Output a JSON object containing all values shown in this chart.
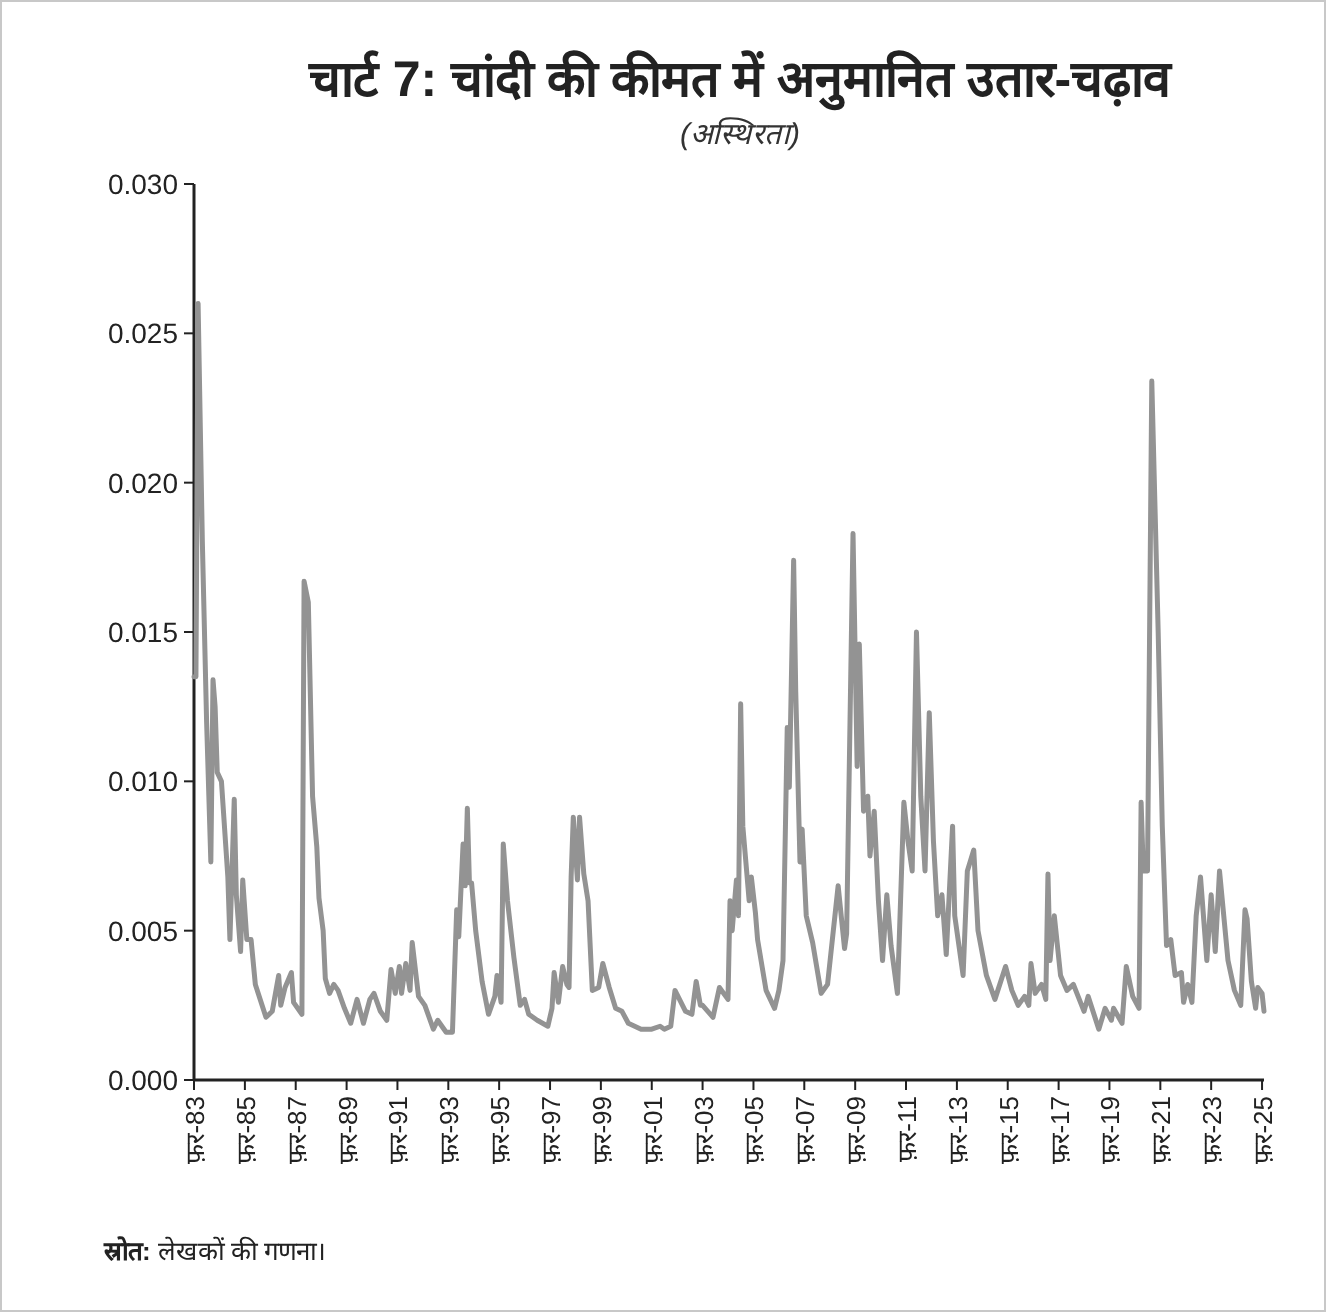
{
  "chart_data": {
    "type": "line",
    "title": "चार्ट 7: चांदी की कीमत में अनुमानित उतार-चढ़ाव",
    "subtitle": "(अस्थिरता)",
    "annotations": [
      "स्रोत: लेखकों की गणना।"
    ],
    "xlim": [
      "1983-02",
      "2025-03"
    ],
    "xticks": [
      {
        "value": "1983-02",
        "label": "फ़र-83"
      },
      {
        "value": "1985-02",
        "label": "फ़र-85"
      },
      {
        "value": "1987-02",
        "label": "फ़र-87"
      },
      {
        "value": "1989-02",
        "label": "फ़र-89"
      },
      {
        "value": "1991-02",
        "label": "फ़र-91"
      },
      {
        "value": "1993-02",
        "label": "फ़र-93"
      },
      {
        "value": "1995-02",
        "label": "फ़र-95"
      },
      {
        "value": "1997-02",
        "label": "फ़र-97"
      },
      {
        "value": "1999-02",
        "label": "फ़र-99"
      },
      {
        "value": "2001-02",
        "label": "फ़र-01"
      },
      {
        "value": "2003-02",
        "label": "फ़र-03"
      },
      {
        "value": "2005-02",
        "label": "फ़र-05"
      },
      {
        "value": "2007-02",
        "label": "फ़र-07"
      },
      {
        "value": "2009-02",
        "label": "फ़र-09"
      },
      {
        "value": "2011-02",
        "label": "फ़र-11"
      },
      {
        "value": "2013-02",
        "label": "फ़र-13"
      },
      {
        "value": "2015-02",
        "label": "फ़र-15"
      },
      {
        "value": "2017-02",
        "label": "फ़र-17"
      },
      {
        "value": "2019-02",
        "label": "फ़र-19"
      },
      {
        "value": "2021-02",
        "label": "फ़र-21"
      },
      {
        "value": "2023-02",
        "label": "फ़र-23"
      },
      {
        "value": "2025-02",
        "label": "फ़र-25"
      }
    ],
    "ylim": [
      0,
      0.03
    ],
    "yticks": [
      {
        "value": 0,
        "label": "0.000"
      },
      {
        "value": 0.005,
        "label": "0.005"
      },
      {
        "value": 0.01,
        "label": "0.010"
      },
      {
        "value": 0.015,
        "label": "0.015"
      },
      {
        "value": 0.02,
        "label": "0.020"
      },
      {
        "value": 0.025,
        "label": "0.025"
      },
      {
        "value": 0.03,
        "label": "0.030"
      }
    ],
    "series": [
      {
        "color": "#939393",
        "line_style": "solid",
        "x": [
          "1983-02",
          "1983-03",
          "1983-04",
          "1983-06",
          "1983-08",
          "1983-10",
          "1983-11",
          "1983-12",
          "1984-01",
          "1984-03",
          "1984-06",
          "1984-07",
          "1984-09",
          "1984-10",
          "1984-12",
          "1985-01",
          "1985-03",
          "1985-05",
          "1985-07",
          "1985-12",
          "1986-03",
          "1986-06",
          "1986-07",
          "1986-09",
          "1986-12",
          "1987-01",
          "1987-05",
          "1987-06",
          "1987-08",
          "1987-10",
          "1987-12",
          "1988-01",
          "1988-03",
          "1988-04",
          "1988-06",
          "1988-08",
          "1988-10",
          "1989-01",
          "1989-04",
          "1989-07",
          "1989-10",
          "1990-01",
          "1990-03",
          "1990-06",
          "1990-09",
          "1990-11",
          "1991-01",
          "1991-03",
          "1991-04",
          "1991-06",
          "1991-08",
          "1991-09",
          "1991-12",
          "1992-03",
          "1992-07",
          "1992-09",
          "1993-01",
          "1993-04",
          "1993-06",
          "1993-07",
          "1993-09",
          "1993-10",
          "1993-11",
          "1993-12",
          "1994-01",
          "1994-03",
          "1994-06",
          "1994-09",
          "1994-12",
          "1995-01",
          "1995-03",
          "1995-04",
          "1995-06",
          "1995-09",
          "1995-12",
          "1996-02",
          "1996-04",
          "1996-08",
          "1997-01",
          "1997-03",
          "1997-04",
          "1997-06",
          "1997-08",
          "1997-10",
          "1997-11",
          "1997-12",
          "1998-01",
          "1998-03",
          "1998-04",
          "1998-06",
          "1998-08",
          "1998-10",
          "1999-01",
          "1999-03",
          "1999-06",
          "1999-09",
          "1999-12",
          "2000-03",
          "2000-09",
          "2001-02",
          "2001-06",
          "2001-08",
          "2001-11",
          "2002-01",
          "2002-06",
          "2002-09",
          "2002-11",
          "2003-01",
          "2003-02",
          "2003-07",
          "2003-10",
          "2004-02",
          "2004-03",
          "2004-04",
          "2004-06",
          "2004-07",
          "2004-08",
          "2004-09",
          "2004-12",
          "2005-01",
          "2005-03",
          "2005-04",
          "2005-08",
          "2005-12",
          "2006-02",
          "2006-04",
          "2006-06",
          "2006-07",
          "2006-09",
          "2006-10",
          "2006-12",
          "2007-01",
          "2007-03",
          "2007-06",
          "2007-10",
          "2008-01",
          "2008-03",
          "2008-06",
          "2008-09",
          "2008-10",
          "2009-01",
          "2009-03",
          "2009-04",
          "2009-06",
          "2009-08",
          "2009-09",
          "2009-11",
          "2010-01",
          "2010-03",
          "2010-05",
          "2010-07",
          "2010-10",
          "2011-01",
          "2011-03",
          "2011-05",
          "2011-07",
          "2011-09",
          "2011-11",
          "2012-01",
          "2012-03",
          "2012-05",
          "2012-07",
          "2012-09",
          "2012-12",
          "2013-01",
          "2013-05",
          "2013-07",
          "2013-10",
          "2013-12",
          "2014-04",
          "2014-08",
          "2015-01",
          "2015-04",
          "2015-07",
          "2015-10",
          "2015-12",
          "2016-01",
          "2016-03",
          "2016-06",
          "2016-08",
          "2016-09",
          "2016-10",
          "2016-12",
          "2017-03",
          "2017-06",
          "2017-09",
          "2018-02",
          "2018-04",
          "2018-09",
          "2018-12",
          "2019-03",
          "2019-04",
          "2019-08",
          "2019-10",
          "2020-01",
          "2020-04",
          "2020-05",
          "2020-06",
          "2020-08",
          "2020-10",
          "2021-01",
          "2021-03",
          "2021-05",
          "2021-07",
          "2021-09",
          "2021-12",
          "2022-01",
          "2022-03",
          "2022-05",
          "2022-07",
          "2022-09",
          "2022-12",
          "2023-02",
          "2023-04",
          "2023-06",
          "2023-10",
          "2024-01",
          "2024-04",
          "2024-06",
          "2024-07",
          "2024-09",
          "2024-11",
          "2024-12",
          "2025-02",
          "2025-03"
        ],
        "values": [
          0.0135,
          0.0135,
          0.026,
          0.018,
          0.012,
          0.0073,
          0.0134,
          0.0125,
          0.0103,
          0.01,
          0.0068,
          0.0047,
          0.0094,
          0.0062,
          0.0043,
          0.0067,
          0.0047,
          0.0047,
          0.0032,
          0.0021,
          0.0023,
          0.0035,
          0.0025,
          0.0031,
          0.0036,
          0.0026,
          0.0022,
          0.0167,
          0.016,
          0.0095,
          0.0078,
          0.0061,
          0.005,
          0.0034,
          0.0029,
          0.0032,
          0.003,
          0.0024,
          0.0019,
          0.0027,
          0.0019,
          0.0027,
          0.0029,
          0.0023,
          0.002,
          0.0037,
          0.0029,
          0.0038,
          0.0029,
          0.0039,
          0.003,
          0.0046,
          0.0028,
          0.0025,
          0.0017,
          0.002,
          0.0016,
          0.0016,
          0.0057,
          0.0048,
          0.0079,
          0.0065,
          0.0091,
          0.0066,
          0.0066,
          0.005,
          0.0033,
          0.0022,
          0.0028,
          0.0035,
          0.0026,
          0.0079,
          0.006,
          0.0041,
          0.0025,
          0.0027,
          0.0022,
          0.002,
          0.0018,
          0.0024,
          0.0036,
          0.0026,
          0.0038,
          0.0032,
          0.0031,
          0.0068,
          0.0088,
          0.0067,
          0.0088,
          0.0069,
          0.006,
          0.003,
          0.0031,
          0.0039,
          0.0031,
          0.0024,
          0.0023,
          0.0019,
          0.0017,
          0.0017,
          0.0018,
          0.0017,
          0.0018,
          0.003,
          0.0023,
          0.0022,
          0.0033,
          0.0025,
          0.0025,
          0.0021,
          0.0031,
          0.0027,
          0.006,
          0.005,
          0.0067,
          0.0055,
          0.0126,
          0.0085,
          0.006,
          0.0068,
          0.0056,
          0.0047,
          0.003,
          0.0024,
          0.003,
          0.004,
          0.0118,
          0.0098,
          0.0174,
          0.013,
          0.0073,
          0.0084,
          0.0055,
          0.0046,
          0.0029,
          0.0032,
          0.0045,
          0.0065,
          0.0044,
          0.0049,
          0.0183,
          0.0105,
          0.0146,
          0.009,
          0.0095,
          0.0075,
          0.009,
          0.006,
          0.004,
          0.0062,
          0.0045,
          0.0029,
          0.0093,
          0.008,
          0.007,
          0.015,
          0.0095,
          0.007,
          0.0123,
          0.008,
          0.0055,
          0.0062,
          0.0042,
          0.0085,
          0.0055,
          0.0035,
          0.007,
          0.0077,
          0.005,
          0.0035,
          0.0027,
          0.0038,
          0.003,
          0.0025,
          0.0028,
          0.0025,
          0.0039,
          0.0029,
          0.0032,
          0.0027,
          0.0069,
          0.004,
          0.0055,
          0.0035,
          0.003,
          0.0032,
          0.0023,
          0.0028,
          0.0017,
          0.0024,
          0.002,
          0.0024,
          0.0019,
          0.0038,
          0.0028,
          0.0024,
          0.0093,
          0.007,
          0.007,
          0.0234,
          0.015,
          0.0085,
          0.0045,
          0.0047,
          0.0035,
          0.0036,
          0.0026,
          0.0032,
          0.0026,
          0.0055,
          0.0068,
          0.004,
          0.0062,
          0.0043,
          0.007,
          0.004,
          0.003,
          0.0025,
          0.0057,
          0.0054,
          0.0033,
          0.0024,
          0.0031,
          0.0029,
          0.0023
        ]
      }
    ]
  }
}
